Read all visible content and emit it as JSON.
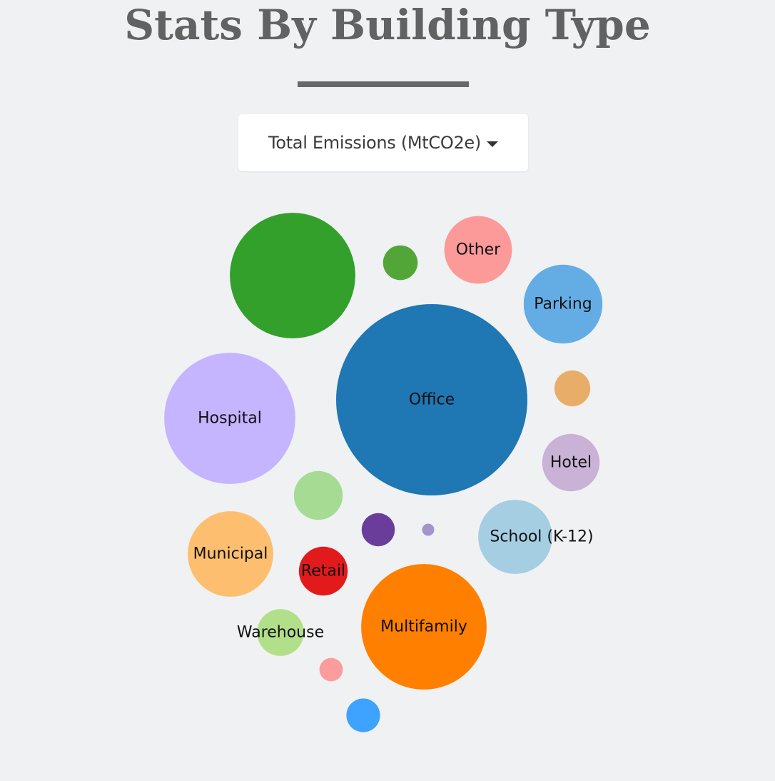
{
  "header": {
    "title": "Stats By Building Type"
  },
  "metric_selector": {
    "selected": "Total Emissions (MtCO2e)"
  },
  "chart_data": {
    "type": "bubble",
    "title": "Stats By Building Type",
    "metric": "Total Emissions (MtCO2e)",
    "bubbles": [
      {
        "label": "Office",
        "value": 100,
        "color": "#1f77b4"
      },
      {
        "label": "",
        "value": 43,
        "color": "#33a02c"
      },
      {
        "label": "Hospital",
        "value": 47,
        "color": "#c5b4ff"
      },
      {
        "label": "Multifamily",
        "value": 43,
        "color": "#ff7f00"
      },
      {
        "label": "Parking",
        "value": 17,
        "color": "#63ade4"
      },
      {
        "label": "Municipal",
        "value": 20,
        "color": "#fdbf6f"
      },
      {
        "label": "School (K-12)",
        "value": 15,
        "color": "#a6cee3"
      },
      {
        "label": "Other",
        "value": 12.5,
        "color": "#fb9a99"
      },
      {
        "label": "Hotel",
        "value": 9,
        "color": "#c9b2d6"
      },
      {
        "label": "Retail",
        "value": 6.5,
        "color": "#e31a1c"
      },
      {
        "label": "Warehouse",
        "value": 6,
        "color": "#b2df8a"
      },
      {
        "label": "",
        "value": 6.5,
        "color": "#a6db94"
      },
      {
        "label": "",
        "value": 3.3,
        "color": "#52a637"
      },
      {
        "label": "",
        "value": 3.5,
        "color": "#e8ad68"
      },
      {
        "label": "",
        "value": 3.1,
        "color": "#3ea2ff"
      },
      {
        "label": "",
        "value": 3,
        "color": "#6a3d9a"
      },
      {
        "label": "",
        "value": 1.5,
        "color": "#fc9c9c"
      },
      {
        "label": "",
        "value": 0.4,
        "color": "#a195cc"
      }
    ]
  }
}
